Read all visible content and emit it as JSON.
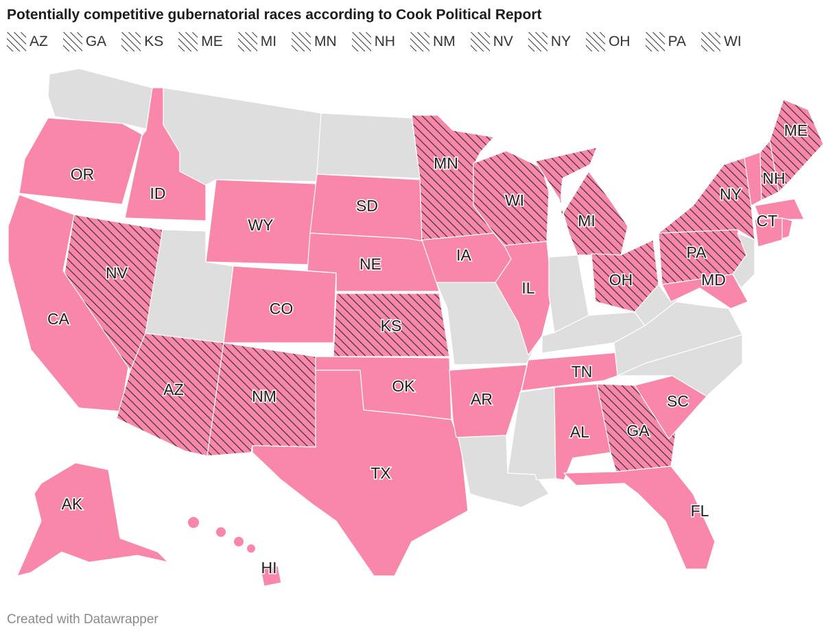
{
  "title": "Potentially competitive gubernatorial races according to Cook Political Report",
  "footer": "Created with Datawrapper",
  "colors": {
    "highlight": "#f987a9",
    "other": "#dedede",
    "hatch": "#333333",
    "border": "#ffffff"
  },
  "legend": [
    "AZ",
    "GA",
    "KS",
    "ME",
    "MI",
    "MN",
    "NH",
    "NM",
    "NV",
    "NY",
    "OH",
    "PA",
    "WI"
  ],
  "map_data": {
    "type": "choropleth-us-states",
    "competitive": [
      "AZ",
      "GA",
      "KS",
      "ME",
      "MI",
      "MN",
      "NH",
      "NM",
      "NV",
      "NY",
      "OH",
      "PA",
      "WI"
    ],
    "races_not_competitive": [
      "AK",
      "AL",
      "AR",
      "CA",
      "CO",
      "CT",
      "FL",
      "HI",
      "IA",
      "ID",
      "IL",
      "MA",
      "MD",
      "NE",
      "OK",
      "OR",
      "RI",
      "SC",
      "SD",
      "TN",
      "TX",
      "VT",
      "WY"
    ],
    "no_race": [
      "WA",
      "MT",
      "ND",
      "UT",
      "MO",
      "LA",
      "MS",
      "KY",
      "IN",
      "WV",
      "VA",
      "NC",
      "DE",
      "NJ"
    ],
    "labels": [
      "OR",
      "ID",
      "WY",
      "SD",
      "MN",
      "WI",
      "MI",
      "NY",
      "ME",
      "NH",
      "CT",
      "MD",
      "PA",
      "OH",
      "IL",
      "IA",
      "NE",
      "KS",
      "CO",
      "NV",
      "CA",
      "AZ",
      "NM",
      "OK",
      "TX",
      "AR",
      "TN",
      "AL",
      "GA",
      "SC",
      "FL",
      "AK",
      "HI"
    ]
  }
}
